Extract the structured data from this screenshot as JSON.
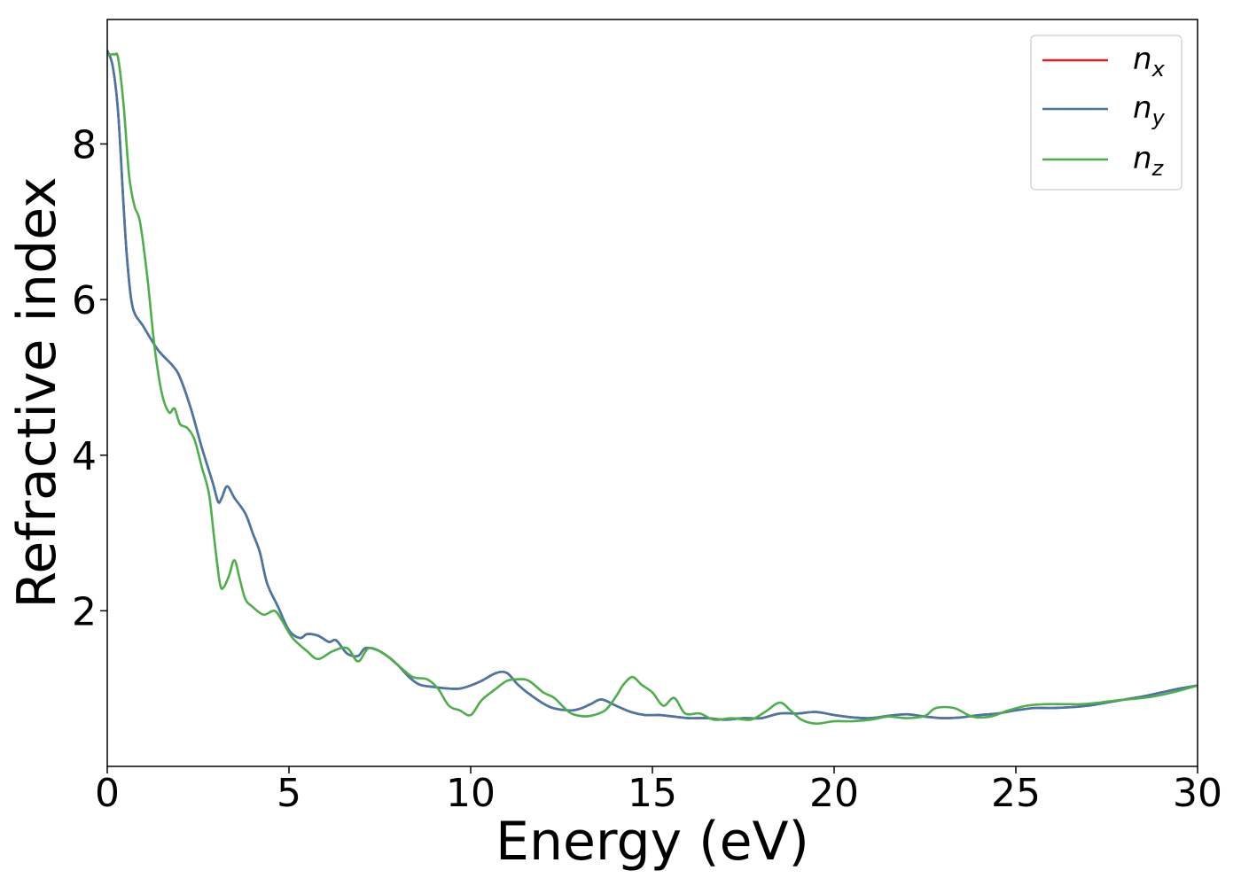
{
  "chart_data": {
    "type": "line",
    "xlabel": "Energy (eV)",
    "ylabel": "Refractive index",
    "xlim": [
      0,
      30
    ],
    "ylim": [
      0,
      9.6
    ],
    "xticks": [
      0,
      5,
      10,
      15,
      20,
      25,
      30
    ],
    "xtick_labels": [
      "0",
      "5",
      "10",
      "15",
      "20",
      "25",
      "30"
    ],
    "yticks": [
      2,
      4,
      6,
      8
    ],
    "ytick_labels": [
      "2",
      "4",
      "6",
      "8"
    ],
    "grid": false,
    "legend_position": "top-right",
    "series": [
      {
        "name": "n",
        "subscript": "x",
        "color": "#e41a1c",
        "x": [
          0,
          0.15,
          0.3,
          0.45,
          0.55,
          0.7,
          1.0,
          1.4,
          1.8,
          2.0,
          2.3,
          2.6,
          2.9,
          3.05,
          3.15,
          3.3,
          3.5,
          3.8,
          4.0,
          4.2,
          4.4,
          4.7,
          5.0,
          5.3,
          5.5,
          5.8,
          6.1,
          6.3,
          6.6,
          6.9,
          7.1,
          7.4,
          7.7,
          8.0,
          8.3,
          8.6,
          9.0,
          9.4,
          9.7,
          10.0,
          10.3,
          10.7,
          11.0,
          11.3,
          11.7,
          12.2,
          12.7,
          13.0,
          13.3,
          13.6,
          14.0,
          14.4,
          14.8,
          15.2,
          15.6,
          16.0,
          16.5,
          17.0,
          17.5,
          18.0,
          18.5,
          19.0,
          19.5,
          20.0,
          20.5,
          21.0,
          21.5,
          22.0,
          22.5,
          23.0,
          23.5,
          24.0,
          24.5,
          25.0,
          25.5,
          26.0,
          26.5,
          27.0,
          27.5,
          28.0,
          28.5,
          29.0,
          29.5,
          30.0
        ],
        "y": [
          9.2,
          9.0,
          8.4,
          7.2,
          6.5,
          5.9,
          5.65,
          5.35,
          5.15,
          5.0,
          4.6,
          4.1,
          3.65,
          3.4,
          3.45,
          3.6,
          3.45,
          3.25,
          3.0,
          2.75,
          2.35,
          2.05,
          1.75,
          1.65,
          1.7,
          1.68,
          1.6,
          1.62,
          1.45,
          1.42,
          1.52,
          1.5,
          1.42,
          1.3,
          1.15,
          1.05,
          1.02,
          1.0,
          1.0,
          1.04,
          1.1,
          1.2,
          1.2,
          1.05,
          0.9,
          0.76,
          0.72,
          0.74,
          0.8,
          0.86,
          0.78,
          0.7,
          0.66,
          0.66,
          0.64,
          0.62,
          0.62,
          0.6,
          0.62,
          0.62,
          0.68,
          0.68,
          0.7,
          0.66,
          0.63,
          0.62,
          0.65,
          0.67,
          0.64,
          0.62,
          0.63,
          0.66,
          0.68,
          0.72,
          0.75,
          0.75,
          0.76,
          0.78,
          0.82,
          0.86,
          0.9,
          0.95,
          1.0,
          1.04
        ]
      },
      {
        "name": "n",
        "subscript": "y",
        "color": "#4477aa",
        "x": [
          0,
          0.15,
          0.3,
          0.45,
          0.55,
          0.7,
          1.0,
          1.4,
          1.8,
          2.0,
          2.3,
          2.6,
          2.9,
          3.05,
          3.15,
          3.3,
          3.5,
          3.8,
          4.0,
          4.2,
          4.4,
          4.7,
          5.0,
          5.3,
          5.5,
          5.8,
          6.1,
          6.3,
          6.6,
          6.9,
          7.1,
          7.4,
          7.7,
          8.0,
          8.3,
          8.6,
          9.0,
          9.4,
          9.7,
          10.0,
          10.3,
          10.7,
          11.0,
          11.3,
          11.7,
          12.2,
          12.7,
          13.0,
          13.3,
          13.6,
          14.0,
          14.4,
          14.8,
          15.2,
          15.6,
          16.0,
          16.5,
          17.0,
          17.5,
          18.0,
          18.5,
          19.0,
          19.5,
          20.0,
          20.5,
          21.0,
          21.5,
          22.0,
          22.5,
          23.0,
          23.5,
          24.0,
          24.5,
          25.0,
          25.5,
          26.0,
          26.5,
          27.0,
          27.5,
          28.0,
          28.5,
          29.0,
          29.5,
          30.0
        ],
        "y": [
          9.2,
          9.0,
          8.4,
          7.2,
          6.5,
          5.9,
          5.65,
          5.35,
          5.15,
          5.0,
          4.6,
          4.1,
          3.65,
          3.4,
          3.45,
          3.6,
          3.45,
          3.25,
          3.0,
          2.75,
          2.35,
          2.05,
          1.75,
          1.65,
          1.7,
          1.68,
          1.6,
          1.62,
          1.45,
          1.42,
          1.52,
          1.5,
          1.42,
          1.3,
          1.15,
          1.05,
          1.02,
          1.0,
          1.0,
          1.04,
          1.1,
          1.2,
          1.2,
          1.05,
          0.9,
          0.76,
          0.72,
          0.74,
          0.8,
          0.86,
          0.78,
          0.7,
          0.66,
          0.66,
          0.64,
          0.62,
          0.62,
          0.6,
          0.62,
          0.62,
          0.68,
          0.68,
          0.7,
          0.66,
          0.63,
          0.62,
          0.65,
          0.67,
          0.64,
          0.62,
          0.63,
          0.66,
          0.68,
          0.72,
          0.75,
          0.75,
          0.76,
          0.78,
          0.82,
          0.86,
          0.9,
          0.95,
          1.0,
          1.04
        ]
      },
      {
        "name": "n",
        "subscript": "z",
        "color": "#4daf4a",
        "x": [
          0,
          0.1,
          0.2,
          0.3,
          0.45,
          0.6,
          0.75,
          0.9,
          1.1,
          1.3,
          1.5,
          1.7,
          1.85,
          2.0,
          2.2,
          2.4,
          2.6,
          2.8,
          2.95,
          3.1,
          3.2,
          3.35,
          3.5,
          3.65,
          3.8,
          4.0,
          4.3,
          4.6,
          4.8,
          5.1,
          5.5,
          5.8,
          6.2,
          6.6,
          6.9,
          7.2,
          7.6,
          8.0,
          8.4,
          8.8,
          9.1,
          9.4,
          9.7,
          10.0,
          10.3,
          10.7,
          11.0,
          11.3,
          11.6,
          12.0,
          12.3,
          12.7,
          13.0,
          13.3,
          13.7,
          14.0,
          14.2,
          14.45,
          14.7,
          15.0,
          15.3,
          15.6,
          15.9,
          16.3,
          16.7,
          17.2,
          17.7,
          18.1,
          18.5,
          18.8,
          19.1,
          19.5,
          20.0,
          20.5,
          21.0,
          21.5,
          22.0,
          22.5,
          22.8,
          23.3,
          23.8,
          24.3,
          24.8,
          25.3,
          25.8,
          26.3,
          26.8,
          27.3,
          27.8,
          28.3,
          28.8,
          29.3,
          29.7,
          30.0
        ],
        "y": [
          9.15,
          9.15,
          9.15,
          9.1,
          8.5,
          7.6,
          7.2,
          7.0,
          6.3,
          5.4,
          4.8,
          4.55,
          4.6,
          4.4,
          4.35,
          4.2,
          3.85,
          3.5,
          2.9,
          2.35,
          2.3,
          2.45,
          2.65,
          2.4,
          2.15,
          2.05,
          1.95,
          2.0,
          1.88,
          1.65,
          1.48,
          1.38,
          1.48,
          1.52,
          1.35,
          1.52,
          1.45,
          1.3,
          1.15,
          1.12,
          1.0,
          0.78,
          0.72,
          0.66,
          0.85,
          1.0,
          1.1,
          1.12,
          1.1,
          0.95,
          0.88,
          0.7,
          0.65,
          0.65,
          0.72,
          0.9,
          1.05,
          1.15,
          1.05,
          0.95,
          0.78,
          0.88,
          0.68,
          0.68,
          0.6,
          0.62,
          0.6,
          0.7,
          0.82,
          0.72,
          0.6,
          0.55,
          0.58,
          0.58,
          0.6,
          0.64,
          0.62,
          0.65,
          0.75,
          0.75,
          0.64,
          0.64,
          0.72,
          0.78,
          0.8,
          0.8,
          0.8,
          0.82,
          0.85,
          0.87,
          0.9,
          0.95,
          1.0,
          1.04
        ]
      }
    ]
  }
}
